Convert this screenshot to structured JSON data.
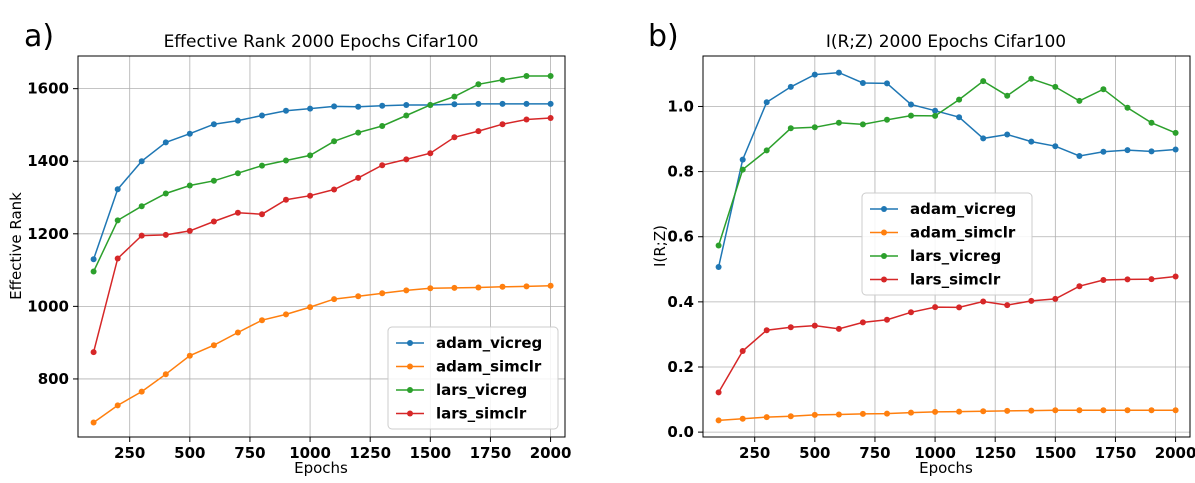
{
  "chart_data": [
    {
      "type": "line",
      "panel_label": "a)",
      "title": "Effective Rank 2000 Epochs Cifar100",
      "xlabel": "Epochs",
      "ylabel": "Effective Rank",
      "xlim": [
        35,
        2060
      ],
      "ylim": [
        640,
        1690
      ],
      "xticks": [
        250,
        500,
        750,
        1000,
        1250,
        1500,
        1750,
        2000
      ],
      "yticks": [
        800,
        1000,
        1200,
        1400,
        1600
      ],
      "grid": true,
      "legend_position": "lower-right",
      "x": [
        100,
        200,
        300,
        400,
        500,
        600,
        700,
        800,
        900,
        1000,
        1100,
        1200,
        1300,
        1400,
        1500,
        1600,
        1700,
        1800,
        1900,
        2000
      ],
      "series": [
        {
          "name": "adam_vicreg",
          "color": "#1f77b4",
          "values": [
            1130,
            1323,
            1400,
            1452,
            1476,
            1502,
            1512,
            1526,
            1539,
            1545,
            1551,
            1550,
            1553,
            1555,
            1555,
            1557,
            1558,
            1558,
            1558,
            1558
          ]
        },
        {
          "name": "adam_simclr",
          "color": "#ff7f0e",
          "values": [
            680,
            727,
            765,
            813,
            864,
            893,
            928,
            962,
            978,
            998,
            1020,
            1028,
            1036,
            1044,
            1050,
            1051,
            1052,
            1054,
            1055,
            1057
          ]
        },
        {
          "name": "lars_vicreg",
          "color": "#2ca02c",
          "values": [
            1096,
            1237,
            1276,
            1311,
            1333,
            1346,
            1367,
            1388,
            1402,
            1416,
            1455,
            1479,
            1497,
            1526,
            1555,
            1578,
            1612,
            1624,
            1635,
            1635
          ]
        },
        {
          "name": "lars_simclr",
          "color": "#d62728",
          "values": [
            874,
            1132,
            1195,
            1197,
            1208,
            1234,
            1258,
            1254,
            1294,
            1305,
            1322,
            1354,
            1389,
            1405,
            1422,
            1466,
            1483,
            1502,
            1515,
            1519
          ]
        }
      ]
    },
    {
      "type": "line",
      "panel_label": "b)",
      "title": "I(R;Z) 2000 Epochs Cifar100",
      "xlabel": "Epochs",
      "ylabel": "I(R;Z)",
      "xlim": [
        35,
        2060
      ],
      "ylim": [
        -0.015,
        1.155
      ],
      "xticks": [
        250,
        500,
        750,
        1000,
        1250,
        1500,
        1750,
        2000
      ],
      "yticks": [
        0.0,
        0.2,
        0.4,
        0.6,
        0.8,
        1.0
      ],
      "ytick_labels": [
        "0.0",
        "0.2",
        "0.4",
        "0.6",
        "0.8",
        "1.0"
      ],
      "grid": true,
      "legend_position": "center",
      "x": [
        100,
        200,
        300,
        400,
        500,
        600,
        700,
        800,
        900,
        1000,
        1100,
        1200,
        1300,
        1400,
        1500,
        1600,
        1700,
        1800,
        1900,
        2000
      ],
      "series": [
        {
          "name": "adam_vicreg",
          "color": "#1f77b4",
          "values": [
            0.507,
            0.837,
            1.013,
            1.06,
            1.098,
            1.104,
            1.072,
            1.071,
            1.006,
            0.987,
            0.967,
            0.902,
            0.914,
            0.892,
            0.878,
            0.848,
            0.861,
            0.866,
            0.862,
            0.868
          ]
        },
        {
          "name": "adam_simclr",
          "color": "#ff7f0e",
          "values": [
            0.036,
            0.041,
            0.046,
            0.049,
            0.053,
            0.054,
            0.056,
            0.057,
            0.06,
            0.062,
            0.063,
            0.064,
            0.065,
            0.066,
            0.067,
            0.067,
            0.067,
            0.067,
            0.067,
            0.067
          ]
        },
        {
          "name": "lars_vicreg",
          "color": "#2ca02c",
          "values": [
            0.573,
            0.806,
            0.865,
            0.933,
            0.936,
            0.95,
            0.945,
            0.959,
            0.972,
            0.971,
            1.021,
            1.078,
            1.033,
            1.085,
            1.06,
            1.017,
            1.053,
            0.996,
            0.95,
            0.919
          ]
        },
        {
          "name": "lars_simclr",
          "color": "#d62728",
          "values": [
            0.122,
            0.249,
            0.313,
            0.322,
            0.327,
            0.317,
            0.337,
            0.345,
            0.368,
            0.384,
            0.383,
            0.401,
            0.39,
            0.403,
            0.409,
            0.448,
            0.467,
            0.469,
            0.47,
            0.478
          ]
        }
      ]
    }
  ]
}
